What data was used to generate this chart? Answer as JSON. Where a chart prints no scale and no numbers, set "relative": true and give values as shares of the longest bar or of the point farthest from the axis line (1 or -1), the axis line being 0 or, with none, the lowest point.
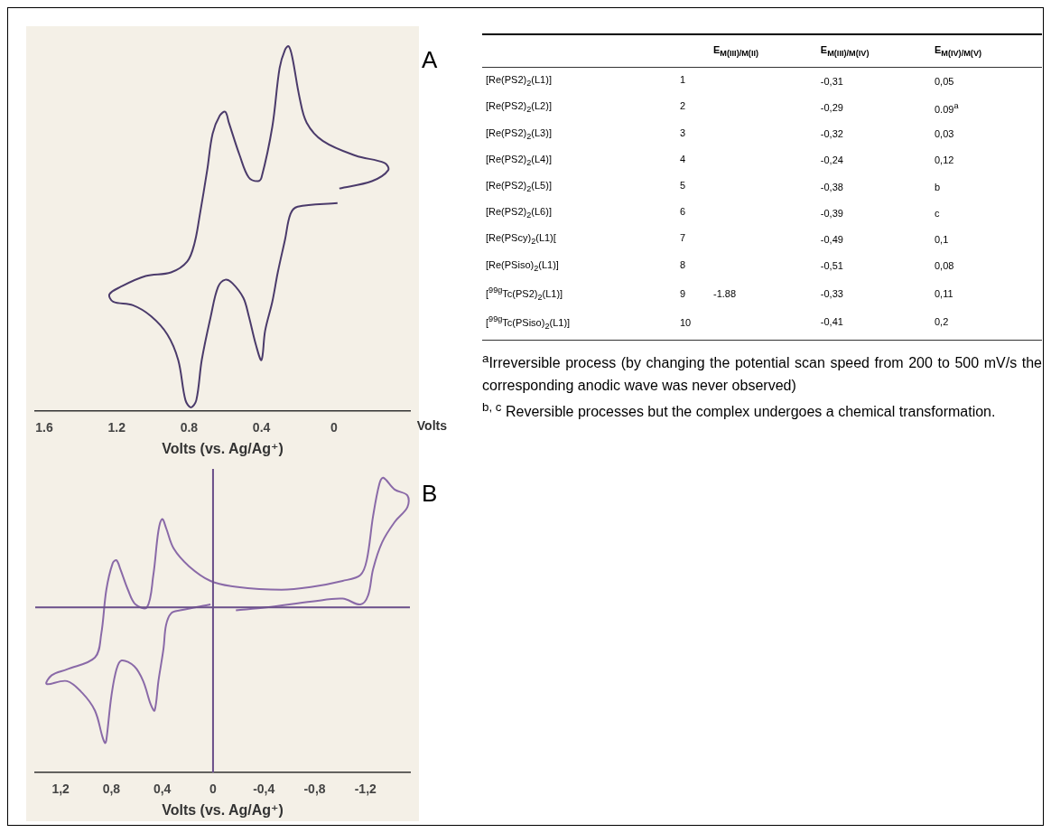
{
  "chart_data": [
    {
      "type": "line",
      "title": "A",
      "xlabel": "Volts (vs. Ag/Ag⁺)",
      "relative": true,
      "grid": false,
      "legend": false,
      "marker": "none",
      "line_style": "solid",
      "xlim": [
        1.65,
        -0.42
      ],
      "xticks": [
        1.6,
        1.2,
        0.8,
        0.4,
        0
      ],
      "annotations": [
        "Volts"
      ],
      "series": [
        {
          "color": "#4b3b6b",
          "x": [
            -0.02,
            0.2,
            0.24,
            0.27,
            0.31,
            0.34,
            0.38,
            0.4,
            0.43,
            0.47,
            0.5,
            0.56,
            0.6,
            0.64,
            0.68,
            0.73,
            0.76,
            0.79,
            0.82,
            0.86,
            0.92,
            1.01,
            1.11,
            1.22,
            1.24,
            1.18,
            1.04,
            0.9,
            0.81,
            0.77,
            0.74,
            0.7,
            0.67,
            0.63,
            0.6,
            0.58,
            0.52,
            0.47,
            0.42,
            0.4,
            0.34,
            0.3,
            0.27,
            0.25,
            0.23,
            0.19,
            0.15,
            0.06,
            -0.12,
            -0.28,
            -0.3,
            -0.21,
            -0.03
          ],
          "values": [
            0.57,
            0.56,
            0.54,
            0.47,
            0.38,
            0.3,
            0.22,
            0.14,
            0.18,
            0.26,
            0.31,
            0.35,
            0.36,
            0.34,
            0.26,
            0.14,
            0.03,
            0.01,
            0.03,
            0.14,
            0.21,
            0.26,
            0.29,
            0.3,
            0.32,
            0.34,
            0.37,
            0.38,
            0.41,
            0.46,
            0.54,
            0.66,
            0.76,
            0.81,
            0.82,
            0.79,
            0.7,
            0.64,
            0.63,
            0.64,
            0.78,
            0.94,
            0.99,
            1,
            0.97,
            0.86,
            0.79,
            0.74,
            0.7,
            0.68,
            0.66,
            0.63,
            0.61
          ]
        }
      ]
    },
    {
      "type": "line",
      "title": "B",
      "xlabel": "Volts (vs. Ag/Ag⁺)",
      "relative": true,
      "grid": false,
      "legend": false,
      "marker": "none",
      "line_style": "solid",
      "xlim": [
        1.4,
        -1.55
      ],
      "xticks": [
        {
          "value": 1.2,
          "label": "1,2"
        },
        {
          "value": 0.8,
          "label": "0,8"
        },
        {
          "value": 0.4,
          "label": "0,4"
        },
        0,
        {
          "value": -0.4,
          "label": "-0,4"
        },
        {
          "value": -0.8,
          "label": "-0,8"
        },
        {
          "value": -1.2,
          "label": "-1,2"
        }
      ],
      "ref_lines": [
        {
          "axis": "x",
          "value": 0,
          "color": "#6a4f8a"
        },
        {
          "axis": "y",
          "value": 0.56,
          "color": "#6a4f8a"
        }
      ],
      "series": [
        {
          "color": "#8a6aa8",
          "x": [
            0.02,
            0.26,
            0.33,
            0.37,
            0.39,
            0.43,
            0.46,
            0.49,
            0.55,
            0.62,
            0.72,
            0.76,
            0.8,
            0.84,
            0.85,
            0.87,
            0.93,
            1.03,
            1.15,
            1.31,
            1.27,
            1.15,
            0.93,
            0.88,
            0.84,
            0.79,
            0.76,
            0.73,
            0.67,
            0.61,
            0.52,
            0.47,
            0.43,
            0.4,
            0.37,
            0.31,
            0.19,
            0.02,
            -0.18,
            -0.54,
            -0.78,
            -1.02,
            -1.16,
            -1.21,
            -1.26,
            -1.31,
            -1.34,
            -1.43,
            -1.53,
            -1.53,
            -1.43,
            -1.33,
            -1.26,
            -1.22,
            -1.16,
            -1.02,
            -0.78,
            -0.42,
            -0.18
          ],
          "values": [
            0.57,
            0.55,
            0.54,
            0.5,
            0.42,
            0.31,
            0.21,
            0.23,
            0.31,
            0.36,
            0.38,
            0.35,
            0.26,
            0.11,
            0.1,
            0.12,
            0.21,
            0.27,
            0.31,
            0.3,
            0.33,
            0.35,
            0.39,
            0.47,
            0.62,
            0.71,
            0.72,
            0.69,
            0.62,
            0.57,
            0.56,
            0.67,
            0.82,
            0.86,
            0.83,
            0.76,
            0.7,
            0.65,
            0.63,
            0.62,
            0.63,
            0.65,
            0.67,
            0.72,
            0.87,
            0.98,
            1,
            0.96,
            0.94,
            0.9,
            0.85,
            0.78,
            0.69,
            0.6,
            0.57,
            0.59,
            0.58,
            0.56,
            0.55
          ]
        }
      ]
    },
    {
      "type": "other",
      "categories": [
        null,
        "E$_{M(III)/M(II)}$",
        "E$_{M(III)/M(IV)}$",
        "E$_{M(IV)/M(V)}$"
      ],
      "y_categories": [
        "[Re(PS2)$_{2}$(L1)]",
        "[Re(PS2)$_{2}$(L2)]",
        "[Re(PS2)$_{2}$(L3)]",
        "[Re(PS2)$_{2}$(L4)]",
        "[Re(PS2)$_{2}$(L5)]",
        "[Re(PS2)$_{2}$(L6)]",
        "[Re(PScy)$_{2}$(L1)[",
        "[Re(PSiso)$_{2}$(L1)]",
        "[$^{99g}$Tc(PS2)$_{2}$(L1)]",
        "[$^{99g}$Tc(PSiso)$_{2}$(L1)]"
      ],
      "cell_labels": [
        [
          "1",
          null,
          "-0,31",
          "0,05"
        ],
        [
          "2",
          null,
          "-0,29",
          "0.09$^{a}$"
        ],
        [
          "3",
          null,
          "-0,32",
          "0,03"
        ],
        [
          "4",
          null,
          "-0,24",
          "0,12"
        ],
        [
          "5",
          null,
          "-0,38",
          "b"
        ],
        [
          "6",
          null,
          "-0,39",
          "c"
        ],
        [
          "7",
          null,
          "-0,49",
          "0,1"
        ],
        [
          "8",
          null,
          "-0,51",
          "0,08"
        ],
        [
          "9",
          "-1.88",
          "-0,33",
          "0,11"
        ],
        [
          "10",
          null,
          "-0,41",
          "0,2"
        ]
      ],
      "annotations": [
        "$^{a}$Irreversible process (by changing the potential scan speed from 200 to 500 mV/s the corresponding anodic wave was never observed)",
        "$^{b, c}$ Reversible processes but the complex undergoes a chemical transformation."
      ]
    }
  ]
}
